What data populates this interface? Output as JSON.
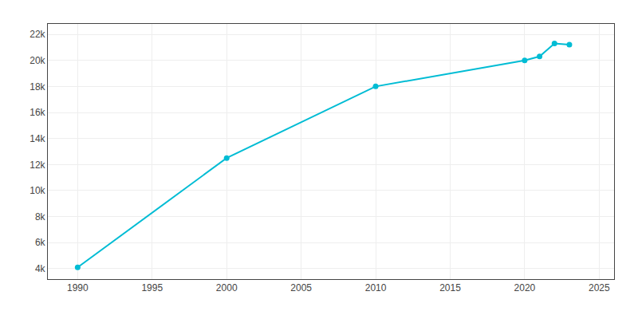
{
  "chart_data": {
    "type": "line",
    "x": [
      1990,
      2000,
      2010,
      2020,
      2021,
      2022,
      2023
    ],
    "values": [
      4100,
      12500,
      18000,
      20000,
      20300,
      21300,
      21200
    ],
    "color": "#00BCD4",
    "marker": "circle",
    "xlim": [
      1988,
      2026
    ],
    "xticks": [
      1990,
      1995,
      2000,
      2005,
      2010,
      2015,
      2020,
      2025
    ],
    "ylim": [
      3200,
      22800
    ],
    "yticks": [
      {
        "value": 4000,
        "label": "4k"
      },
      {
        "value": 6000,
        "label": "6k"
      },
      {
        "value": 8000,
        "label": "8k"
      },
      {
        "value": 10000,
        "label": "10k"
      },
      {
        "value": 12000,
        "label": "12k"
      },
      {
        "value": 14000,
        "label": "14k"
      },
      {
        "value": 16000,
        "label": "16k"
      },
      {
        "value": 18000,
        "label": "18k"
      },
      {
        "value": 20000,
        "label": "20k"
      },
      {
        "value": 22000,
        "label": "22k"
      }
    ],
    "grid": true
  }
}
